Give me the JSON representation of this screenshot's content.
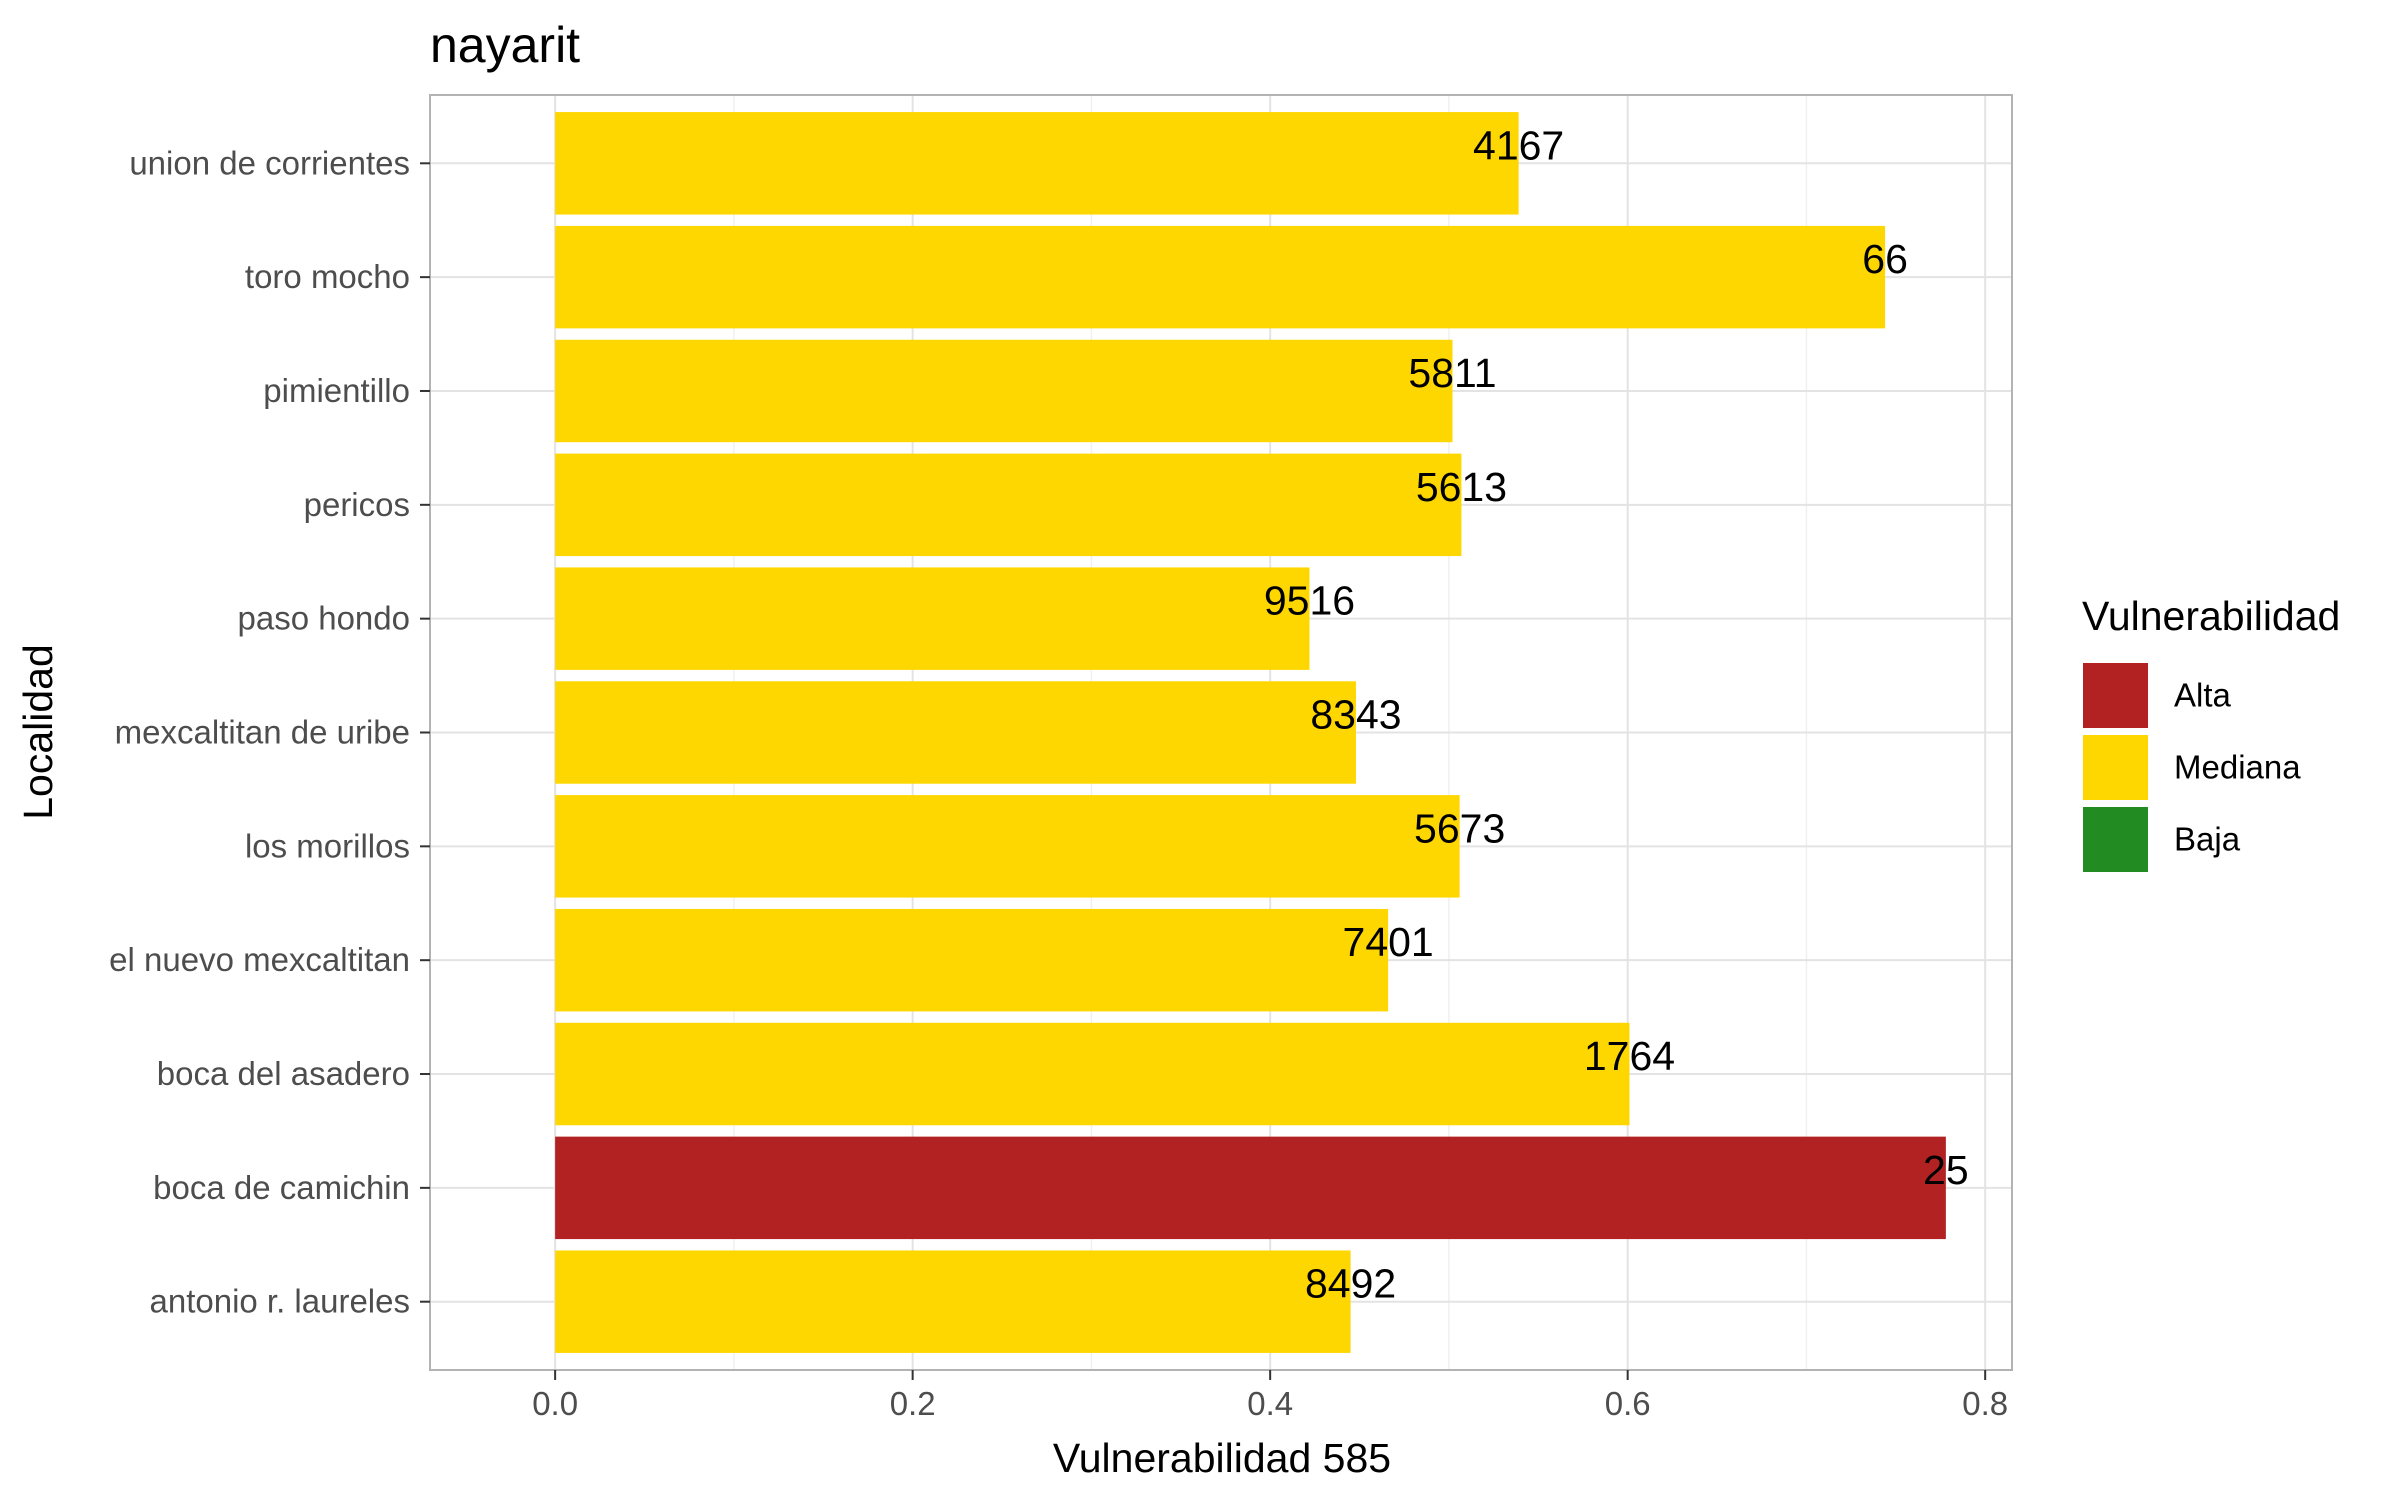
{
  "chart_data": {
    "type": "bar",
    "orientation": "horizontal",
    "title": "nayarit",
    "xlabel": "Vulnerabilidad 585",
    "ylabel": "Localidad",
    "xlim": [
      -0.07,
      0.815
    ],
    "xticks": [
      0.0,
      0.2,
      0.4,
      0.6,
      0.8
    ],
    "xtick_labels": [
      "0.0",
      "0.2",
      "0.4",
      "0.6",
      "0.8"
    ],
    "grid": true,
    "categories": [
      "union de corrientes",
      "toro mocho",
      "pimientillo",
      "pericos",
      "paso hondo",
      "mexcaltitan de uribe",
      "los morillos",
      "el nuevo mexcaltitan",
      "boca del asadero",
      "boca de camichin",
      "antonio r. laureles"
    ],
    "values": [
      0.539,
      0.744,
      0.502,
      0.507,
      0.422,
      0.448,
      0.506,
      0.466,
      0.601,
      0.778,
      0.445
    ],
    "labels": [
      "4167",
      "66",
      "5811",
      "5613",
      "9516",
      "8343",
      "5673",
      "7401",
      "1764",
      "25",
      "8492"
    ],
    "classes": [
      "Mediana",
      "Mediana",
      "Mediana",
      "Mediana",
      "Mediana",
      "Mediana",
      "Mediana",
      "Mediana",
      "Mediana",
      "Alta",
      "Mediana"
    ],
    "legend": {
      "title": "Vulnerabilidad",
      "position": "right",
      "entries": [
        {
          "name": "Alta",
          "color": "#b22222"
        },
        {
          "name": "Mediana",
          "color": "#ffd700"
        },
        {
          "name": "Baja",
          "color": "#228b22"
        }
      ]
    }
  }
}
